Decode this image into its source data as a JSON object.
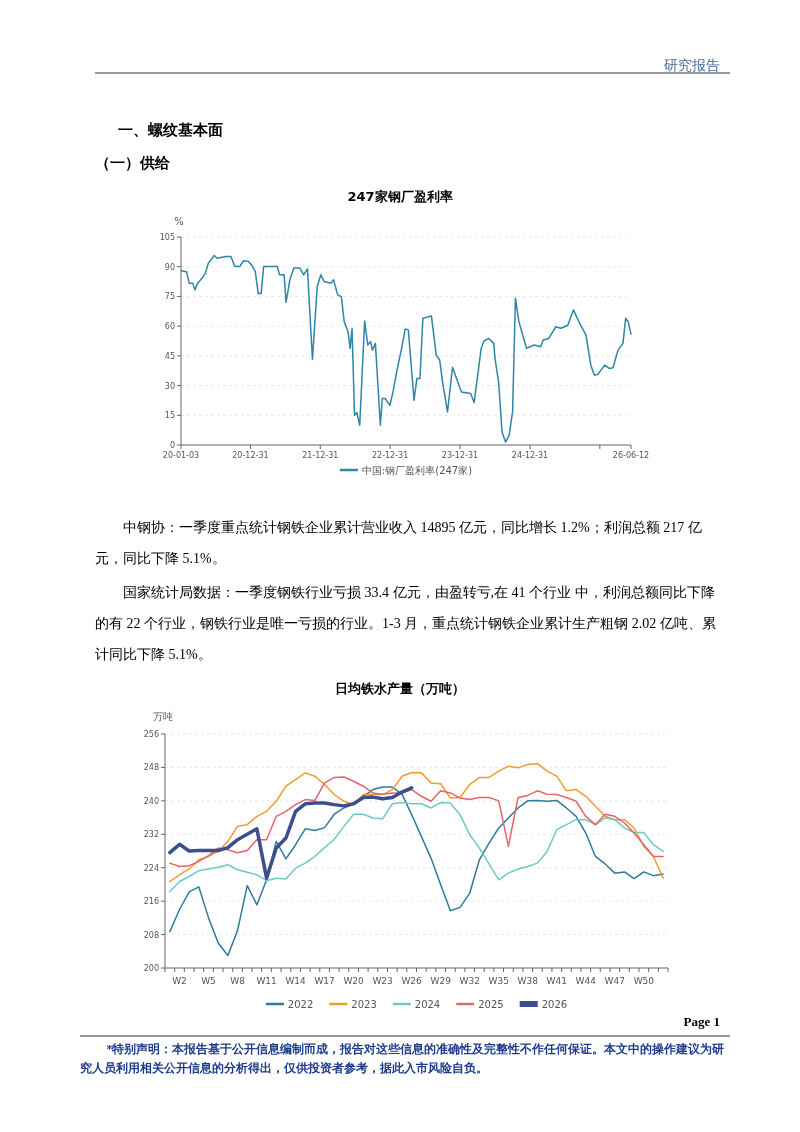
{
  "chart_data": [
    {
      "type": "line",
      "title": "247家钢厂盈利率",
      "ylabel": "%",
      "grid": "y",
      "legend": "bottom",
      "annotations": [
        "研究报告",
        "一、螺纹基本面",
        "（一）供给",
        "中钢协：一季度重点统计钢铁企业累计营业收入 14895 亿元，同比增长 1.2%；利润总额 217 亿元，同比下降 5.1%。",
        "国家统计局数据：一季度钢铁行业亏损 33.4 亿元，由盈转亏,在 41 个行业 中，利润总额同比下降的有 22 个行业，钢铁行业是唯一亏损的行业。1-3 月，重点统计钢铁企业累计生产粗钢 2.02 亿吨、累计同比下降 5.1%。"
      ],
      "xlim": [
        "2020-01-03",
        "2026-06-12"
      ],
      "xticks": [
        {
          "value": "2020-01-03",
          "label": "20-01-03"
        },
        {
          "value": "2020-12-31",
          "label": "20-12-31"
        },
        {
          "value": "2021-12-31",
          "label": "21-12-31"
        },
        {
          "value": "2022-12-31",
          "label": "22-12-31"
        },
        {
          "value": "2023-12-31",
          "label": "23-12-31"
        },
        {
          "value": "2024-12-31",
          "label": "24-12-31"
        },
        {
          "value": "2025-12-31",
          "label": null
        },
        {
          "value": "2026-06-12",
          "label": "26-06-12"
        }
      ],
      "ylim": [
        0,
        105
      ],
      "yticks": [
        0,
        15,
        30,
        45,
        60,
        75,
        90,
        105
      ],
      "x": [
        "2020-01-03",
        "2020-02-01",
        "2020-02-15",
        "2020-03-05",
        "2020-03-15",
        "2020-03-30",
        "2020-04-25",
        "2020-05-10",
        "2020-05-25",
        "2020-06-25",
        "2020-07-10",
        "2020-08-25",
        "2020-09-20",
        "2020-10-10",
        "2020-11-05",
        "2020-11-25",
        "2020-12-20",
        "2021-01-05",
        "2021-01-25",
        "2021-02-10",
        "2021-02-25",
        "2021-03-10",
        "2021-04-01",
        "2021-05-20",
        "2021-06-01",
        "2021-06-25",
        "2021-07-05",
        "2021-07-25",
        "2021-08-15",
        "2021-09-15",
        "2021-10-05",
        "2021-10-25",
        "2021-11-20",
        "2021-12-15",
        "2022-01-03",
        "2022-01-20",
        "2022-02-25",
        "2022-03-10",
        "2022-04-01",
        "2022-04-20",
        "2022-05-05",
        "2022-05-25",
        "2022-06-05",
        "2022-06-15",
        "2022-06-28",
        "2022-07-10",
        "2022-07-25",
        "2022-08-20",
        "2022-09-05",
        "2022-09-20",
        "2022-09-30",
        "2022-10-15",
        "2022-11-10",
        "2022-11-20",
        "2022-12-05",
        "2022-12-30",
        "2023-01-15",
        "2023-02-05",
        "2023-03-01",
        "2023-03-20",
        "2023-04-05",
        "2023-05-05",
        "2023-05-20",
        "2023-06-05",
        "2023-06-20",
        "2023-08-04",
        "2023-08-29",
        "2023-09-16",
        "2023-10-01",
        "2023-10-27",
        "2023-11-22",
        "2023-12-13",
        "2024-01-08",
        "2024-02-25",
        "2024-03-14",
        "2024-04-20",
        "2024-05-05",
        "2024-05-30",
        "2024-06-25",
        "2024-07-01",
        "2024-07-20",
        "2024-08-07",
        "2024-08-25",
        "2024-09-13",
        "2024-10-01",
        "2024-10-16",
        "2024-11-03",
        "2024-12-13",
        "2025-01-22",
        "2025-02-25",
        "2025-03-10",
        "2025-04-08",
        "2025-05-15",
        "2025-06-10",
        "2025-07-16",
        "2025-08-15",
        "2025-09-17",
        "2025-10-20",
        "2025-11-14",
        "2025-12-02",
        "2025-12-20",
        "2026-01-26",
        "2026-02-20",
        "2026-03-10",
        "2026-04-05",
        "2026-05-01",
        "2026-05-15",
        "2026-05-28",
        "2026-06-12"
      ],
      "series": [
        {
          "name": "中国:钢厂盈利率(247家)",
          "color": "#2f85a6",
          "values": [
            88,
            87.5,
            81.7,
            81.7,
            78.3,
            81.7,
            84.6,
            86.8,
            91.8,
            95.7,
            94.3,
            95.2,
            95.2,
            90.1,
            90.1,
            93,
            92.7,
            91,
            87.6,
            76.3,
            76.6,
            90.1,
            90.1,
            90.1,
            85.9,
            85.9,
            72,
            83.4,
            89.3,
            89.3,
            85.9,
            88.9,
            43.2,
            80,
            85.9,
            82.5,
            81.7,
            83.4,
            75.8,
            74.9,
            62.3,
            57.2,
            48.8,
            58.9,
            15,
            16.4,
            10,
            62.6,
            50.5,
            52.2,
            47.9,
            51.3,
            10,
            23.5,
            23.5,
            20,
            26.8,
            37.8,
            48.8,
            58.6,
            58.1,
            22.6,
            33.6,
            33.6,
            64,
            65.1,
            45.4,
            42.9,
            31.9,
            16.7,
            39.2,
            33.6,
            26.8,
            26,
            21.4,
            48.8,
            52.5,
            53.8,
            51.3,
            43.7,
            31.9,
            6.6,
            1.5,
            4.9,
            16.7,
            74.1,
            62.3,
            48.8,
            50.5,
            49.6,
            53,
            53.8,
            59.7,
            58.9,
            60.3,
            68.2,
            61.4,
            55.5,
            40.3,
            35.3,
            35.6,
            40.3,
            38.6,
            39,
            47.9,
            51.3,
            64,
            62.3,
            56
          ]
        }
      ]
    },
    {
      "type": "line",
      "title": "日均铁水产量（万吨）",
      "ylabel": "万吨",
      "grid": "y",
      "legend": "bottom",
      "annotations": [
        "Page 1",
        "*特别声明：本报告基于公开信息编制而成，报告对这些信息的准确性及完整性不作任何保证。本文中的操作建议为研究人员利用相关公开信息的分析得出，仅供投资者参考，据此入市风险自负。"
      ],
      "ylim": [
        200,
        256
      ],
      "yticks": [
        200,
        208,
        216,
        224,
        232,
        240,
        248,
        256
      ],
      "categories": [
        null,
        "W2",
        null,
        null,
        "W5",
        null,
        null,
        "W8",
        null,
        null,
        "W11",
        null,
        null,
        "W14",
        null,
        null,
        "W17",
        null,
        null,
        "W20",
        null,
        null,
        "W23",
        null,
        null,
        "W26",
        null,
        null,
        "W29",
        null,
        null,
        "W32",
        null,
        null,
        "W35",
        null,
        null,
        "W38",
        null,
        null,
        "W41",
        null,
        null,
        "W44",
        null,
        null,
        "W47",
        null,
        null,
        "W50",
        null,
        null
      ],
      "series": [
        {
          "name": "2022",
          "color": "#2e7b9c",
          "values": [
            208.7,
            214,
            218.2,
            219.4,
            212,
            206,
            203,
            209,
            219.7,
            215.1,
            221.1,
            230.3,
            226.1,
            229.5,
            233.3,
            232.9,
            233.6,
            236.8,
            238.3,
            239.3,
            241.1,
            242.7,
            243.3,
            243.3,
            241.6,
            236.7,
            231.5,
            226.3,
            219.9,
            213.7,
            214.5,
            217.9,
            225.9,
            229.9,
            233.5,
            235.9,
            238.3,
            240,
            240.1,
            239.9,
            240.1,
            238.3,
            236.3,
            232.3,
            226.7,
            224.9,
            222.7,
            223,
            221.4,
            223,
            222.1,
            222.5
          ]
        },
        {
          "name": "2023",
          "color": "#f39a30",
          "values": [
            220.7,
            222.3,
            223.7,
            225.9,
            226.7,
            227.9,
            230.3,
            233.9,
            234.3,
            236.3,
            237.5,
            239.9,
            243.5,
            245.1,
            246.7,
            245.9,
            243.9,
            241.5,
            239.9,
            239.1,
            241.5,
            241.6,
            241.5,
            242.7,
            245.9,
            246.8,
            246.7,
            244.3,
            244.1,
            240.7,
            240.8,
            243.9,
            245.6,
            245.6,
            247.1,
            248.3,
            247.9,
            248.7,
            248.9,
            247.1,
            245.9,
            242.4,
            242.7,
            241.1,
            238.7,
            236.3,
            235.5,
            235.5,
            233.5,
            229.1,
            226.7,
            221.5
          ]
        },
        {
          "name": "2024",
          "color": "#6ccac4",
          "values": [
            218.3,
            220.7,
            221.9,
            223.3,
            223.7,
            224.1,
            224.7,
            223.5,
            222.9,
            222.3,
            220.9,
            221.5,
            221.3,
            223.9,
            225.1,
            226.7,
            228.8,
            230.8,
            233.9,
            236.8,
            236.8,
            235.9,
            235.7,
            239.3,
            239.6,
            239.3,
            239.3,
            238.3,
            239.6,
            239.5,
            236.7,
            231.9,
            228.7,
            224.9,
            221.1,
            222.7,
            223.7,
            224.3,
            225.1,
            227.9,
            233.1,
            234.3,
            235.5,
            235.5,
            234.3,
            235.9,
            235.5,
            233.5,
            232.4,
            232.4,
            229.5,
            227.9
          ]
        },
        {
          "name": "2025",
          "color": "#e2656b",
          "values": [
            225.1,
            224.3,
            224.5,
            225.5,
            226.9,
            228.7,
            228.3,
            227.6,
            228.1,
            230.7,
            230.7,
            236.3,
            237.5,
            239.1,
            240.3,
            240.1,
            244.3,
            245.6,
            245.7,
            244.7,
            243.5,
            241.9,
            241.6,
            241.9,
            241.9,
            242.7,
            241.1,
            239.9,
            242.4,
            241.9,
            240.7,
            240.3,
            240.8,
            240.8,
            240,
            229.1,
            240.8,
            241.3,
            242.4,
            241.6,
            241.5,
            240.8,
            239.9,
            236.3,
            234.3,
            236.8,
            236.3,
            234.7,
            232.3,
            229.5,
            226.7,
            226.7
          ]
        },
        {
          "name": "2026",
          "color": "#3c4e8e",
          "values": [
            227.6,
            229.6,
            228,
            228.1,
            228.1,
            228.1,
            228.8,
            230.7,
            232,
            233.3,
            221.5,
            228.7,
            231.1,
            237.5,
            239.3,
            239.5,
            239.5,
            239.1,
            238.8,
            239.3,
            240.8,
            240.9,
            240.5,
            240.8,
            242.1,
            243.1,
            null,
            null,
            null,
            null,
            null,
            null,
            null,
            null,
            null,
            null,
            null,
            null,
            null,
            null,
            null,
            null,
            null,
            null,
            null,
            null,
            null,
            null,
            null,
            null,
            null,
            null
          ]
        }
      ]
    }
  ]
}
